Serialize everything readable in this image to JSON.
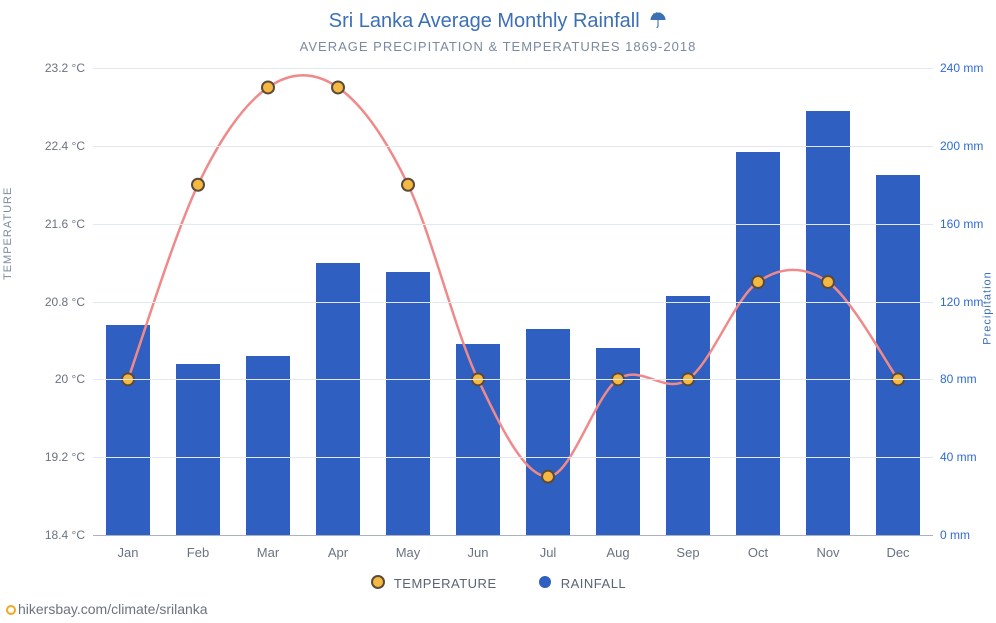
{
  "title": {
    "text": "Sri Lanka Average Monthly Rainfall",
    "color": "#3b6fb6",
    "fontsize": 20,
    "icon_color": "#3b6fb6"
  },
  "subtitle": {
    "text": "AVERAGE PRECIPITATION & TEMPERATURES 1869-2018",
    "color": "#7a8aa0",
    "fontsize": 13
  },
  "plot": {
    "background": "#ffffff",
    "grid_color": "#e3e7ee",
    "baseline_color": "#a9b2c2",
    "months": [
      "Jan",
      "Feb",
      "Mar",
      "Apr",
      "May",
      "Jun",
      "Jul",
      "Aug",
      "Sep",
      "Oct",
      "Nov",
      "Dec"
    ],
    "x_label_color": "#6b7280",
    "x_label_fontsize": 13,
    "left_axis": {
      "title": "TEMPERATURE",
      "title_color": "#7a8aa0",
      "unit": "°C",
      "min": 18.4,
      "max": 23.2,
      "step": 0.8,
      "ticks": [
        "18.4 °C",
        "19.2 °C",
        "20 °C",
        "20.8 °C",
        "21.6 °C",
        "22.4 °C",
        "23.2 °C"
      ],
      "tick_color": "#6b7280"
    },
    "right_axis": {
      "title": "Precipitation",
      "title_color": "#3b6fb6",
      "unit": "mm",
      "min": 0,
      "max": 240,
      "step": 40,
      "ticks": [
        "0 mm",
        "40 mm",
        "80 mm",
        "120 mm",
        "160 mm",
        "200 mm",
        "240 mm"
      ],
      "tick_color": "#2f6bd6"
    },
    "bars": {
      "color": "#2f5fc1",
      "width_ratio": 0.62,
      "values_mm": [
        108,
        88,
        92,
        140,
        135,
        98,
        106,
        96,
        123,
        197,
        218,
        185
      ]
    },
    "line": {
      "color": "#f08a8a",
      "width": 2.5,
      "marker_outer_color": "#5b4a3a",
      "marker_inner_color": "#f5b941",
      "marker_outer_r": 6,
      "marker_inner_r": 4,
      "values_c": [
        20.0,
        22.0,
        23.0,
        23.0,
        22.0,
        20.0,
        19.0,
        20.0,
        20.0,
        21.0,
        21.0,
        20.0
      ]
    }
  },
  "legend": {
    "temperature_label": "TEMPERATURE",
    "rainfall_label": "RAINFALL",
    "text_color": "#5a6472"
  },
  "attribution": {
    "text": "hikersbay.com/climate/srilanka",
    "color": "#6b7280"
  }
}
